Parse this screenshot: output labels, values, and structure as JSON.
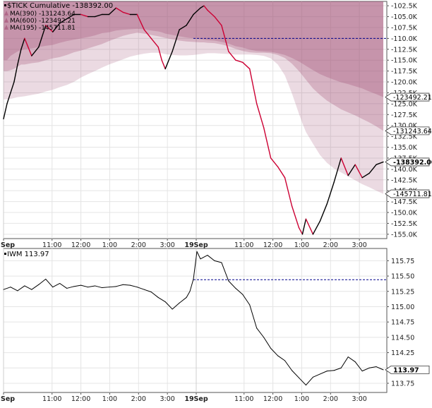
{
  "chart_data": [
    {
      "type": "line",
      "panel": "top",
      "title": "$TICK Cumulative -138392.00",
      "legend": [
        {
          "label": "MA(390) -131243.64",
          "color": "#a6567a"
        },
        {
          "label": "MA(600) -123492.21",
          "color": "#a6567a"
        },
        {
          "label": "MA(195) -145711.81",
          "color": "#a6567a"
        }
      ],
      "legend_placement": "top-left",
      "grid": true,
      "ylim": [
        -156000,
        -101500
      ],
      "y_ticks": [
        -102500,
        -105000,
        -107500,
        -110000,
        -112500,
        -115000,
        -117500,
        -120000,
        -122500,
        -125000,
        -127500,
        -130000,
        -132500,
        -135000,
        -137500,
        -140000,
        -142500,
        -145000,
        -147500,
        -150000,
        -152500,
        -155000
      ],
      "y_tick_labels": [
        "-102.5K",
        "-105.0K",
        "-107.5K",
        "-110.0K",
        "-112.5K",
        "-115.0K",
        "-117.5K",
        "-120.0K",
        "-122.5K",
        "-125.0K",
        "-127.5K",
        "-130.0K",
        "-132.5K",
        "-135.0K",
        "-137.5K",
        "-140.0K",
        "-142.5K",
        "-145.0K",
        "-147.5K",
        "-150.0K",
        "-152.5K",
        "-155.0K"
      ],
      "last_value_labels": [
        {
          "text": "-123492.21",
          "value": -123492.21
        },
        {
          "text": "-131243.64",
          "value": -131243.64
        },
        {
          "text": "-138392.00",
          "value": -138392.0,
          "bold": true
        },
        {
          "text": "-145711.81",
          "value": -145711.81
        }
      ],
      "reference_line": {
        "value": -110000,
        "start_x": 270,
        "style": "dashed",
        "color": "#00008b"
      },
      "x": [
        0,
        5,
        10,
        15,
        20,
        25,
        30,
        40,
        50,
        60,
        70,
        80,
        90,
        100,
        110,
        120,
        130,
        140,
        150,
        160,
        170,
        180,
        190,
        200,
        210,
        220,
        225,
        230,
        240,
        250,
        260,
        270,
        280,
        285,
        290,
        300,
        310,
        320,
        330,
        340,
        350,
        360,
        370,
        380,
        390,
        400,
        410,
        420,
        425,
        430,
        440,
        450,
        460,
        470,
        480,
        490,
        500,
        510,
        520,
        530,
        540
      ],
      "series": [
        {
          "name": "$TICK Cumulative",
          "color": "#000000",
          "values": [
            -128500,
            -125000,
            -122500,
            -120000,
            -116000,
            -112500,
            -110000,
            -114000,
            -112000,
            -107000,
            -108500,
            -106500,
            -105500,
            -104500,
            -104500,
            -105000,
            -105000,
            -104500,
            -104500,
            -103000,
            -104000,
            -104500,
            -104500,
            -108000,
            -110000,
            -112000,
            -115000,
            -117000,
            -113000,
            -108000,
            -107000,
            -104500,
            -103000,
            -102500,
            -103500,
            -105000,
            -107000,
            -113000,
            -115000,
            -115500,
            -117000,
            -125000,
            -130500,
            -137500,
            -139500,
            -142000,
            -148500,
            -153500,
            -155000,
            -151500,
            -155000,
            -152000,
            -148000,
            -143000,
            -137500,
            -141500,
            -139000,
            -142000,
            -141000,
            -139000,
            -138392
          ]
        },
        {
          "name": "MA(600)",
          "color": "#a6567a",
          "values": [
            -115000,
            -115000,
            -114000,
            -113500,
            -113000,
            -112700,
            -112500,
            -112300,
            -112000,
            -111700,
            -111500,
            -111000,
            -110600,
            -110300,
            -110000,
            -109700,
            -109300,
            -108800,
            -108600,
            -108200,
            -108000,
            -107900,
            -107800,
            -107900,
            -108200,
            -108400,
            -108600,
            -108900,
            -109200,
            -109500,
            -109800,
            -110000,
            -110200,
            -110300,
            -110400,
            -110500,
            -110800,
            -111200,
            -111800,
            -112100,
            -112600,
            -112900,
            -113000,
            -113100,
            -113400,
            -113800,
            -114500,
            -115300,
            -115800,
            -116300,
            -117300,
            -118200,
            -118900,
            -119500,
            -120100,
            -120500,
            -121000,
            -121500,
            -122200,
            -122800,
            -123492
          ]
        },
        {
          "name": "MA(390)",
          "color": "#a6567a",
          "values": [
            -117500,
            -117500,
            -117300,
            -117000,
            -116500,
            -116000,
            -116000,
            -115700,
            -115500,
            -115000,
            -114600,
            -114300,
            -113800,
            -113200,
            -112800,
            -112300,
            -111800,
            -111300,
            -110600,
            -110000,
            -109400,
            -109000,
            -108700,
            -108900,
            -109200,
            -109500,
            -109700,
            -109900,
            -110200,
            -110500,
            -110700,
            -110800,
            -110900,
            -110900,
            -111000,
            -111100,
            -111400,
            -111800,
            -112400,
            -112900,
            -113200,
            -113300,
            -113300,
            -113400,
            -113800,
            -114500,
            -115800,
            -117500,
            -118500,
            -119500,
            -121500,
            -123000,
            -124300,
            -125300,
            -126300,
            -127000,
            -127700,
            -128500,
            -129300,
            -130200,
            -131244
          ]
        },
        {
          "name": "MA(195)",
          "color": "#a6567a",
          "values": [
            -124000,
            -124000,
            -123900,
            -123700,
            -123500,
            -123400,
            -123300,
            -123000,
            -122700,
            -122200,
            -121800,
            -121200,
            -120700,
            -120000,
            -119000,
            -118200,
            -117500,
            -116700,
            -116000,
            -115400,
            -114800,
            -114200,
            -113800,
            -113500,
            -113300,
            -113300,
            -113400,
            -113600,
            -113800,
            -113900,
            -113900,
            -113800,
            -113600,
            -113500,
            -113400,
            -113400,
            -113500,
            -113600,
            -113700,
            -113700,
            -113700,
            -113800,
            -114000,
            -114600,
            -116000,
            -118500,
            -122600,
            -127300,
            -129500,
            -131500,
            -134200,
            -136800,
            -138600,
            -139900,
            -140800,
            -141700,
            -142600,
            -143500,
            -144200,
            -145000,
            -145712
          ]
        }
      ]
    },
    {
      "type": "line",
      "panel": "bottom",
      "title": "IWM 113.97",
      "grid": true,
      "ylim": [
        113.6,
        115.95
      ],
      "y_ticks": [
        113.75,
        114.0,
        114.25,
        114.5,
        114.75,
        115.0,
        115.25,
        115.5,
        115.75
      ],
      "y_tick_labels": [
        "113.75",
        "114.00",
        "114.25",
        "114.50",
        "114.75",
        "115.00",
        "115.25",
        "115.50",
        "115.75"
      ],
      "last_value_labels": [
        {
          "text": "113.97",
          "value": 113.97,
          "bold": true
        }
      ],
      "reference_line": {
        "value": 115.44,
        "start_x": 270,
        "style": "dashed",
        "color": "#00008b"
      },
      "x": [
        0,
        10,
        20,
        30,
        40,
        50,
        60,
        70,
        80,
        90,
        100,
        110,
        120,
        130,
        140,
        150,
        160,
        170,
        180,
        190,
        200,
        210,
        220,
        230,
        240,
        250,
        260,
        265,
        270,
        275,
        280,
        290,
        300,
        310,
        320,
        330,
        340,
        350,
        360,
        370,
        380,
        390,
        400,
        410,
        420,
        430,
        440,
        450,
        460,
        470,
        480,
        490,
        500,
        510,
        520,
        530,
        540
      ],
      "series": [
        {
          "name": "IWM",
          "color": "#000000",
          "values": [
            115.28,
            115.32,
            115.26,
            115.34,
            115.28,
            115.36,
            115.45,
            115.32,
            115.38,
            115.3,
            115.33,
            115.35,
            115.32,
            115.34,
            115.31,
            115.32,
            115.33,
            115.36,
            115.35,
            115.32,
            115.28,
            115.24,
            115.15,
            115.08,
            114.96,
            115.06,
            115.15,
            115.25,
            115.45,
            115.9,
            115.78,
            115.84,
            115.75,
            115.72,
            115.42,
            115.3,
            115.2,
            115.03,
            114.65,
            114.5,
            114.32,
            114.2,
            114.12,
            113.96,
            113.84,
            113.72,
            113.85,
            113.9,
            113.95,
            113.96,
            114.0,
            114.18,
            114.1,
            113.95,
            114.0,
            114.02,
            113.97
          ]
        }
      ]
    }
  ],
  "x_axis": {
    "tick_labels": [
      "Sep",
      "11:00",
      "12:00",
      "1:00",
      "2:00",
      "3:00",
      "19Sep",
      "11:00",
      "12:00",
      "1:00",
      "2:00",
      "3:00"
    ],
    "tick_x": [
      0,
      69,
      110,
      151,
      192,
      233,
      274,
      342,
      383,
      424,
      465,
      506
    ],
    "bold": [
      true,
      false,
      false,
      false,
      false,
      false,
      true,
      false,
      false,
      false,
      false,
      false
    ]
  },
  "colors": {
    "price_down": "#cc0033",
    "price_up": "#000000",
    "ma_fill": "#a6567a",
    "reference": "#00008b",
    "grid": "#e4e4e4"
  }
}
